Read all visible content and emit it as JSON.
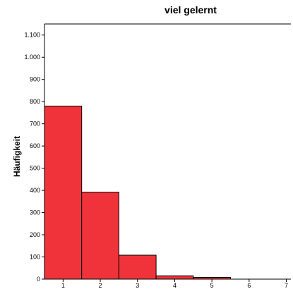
{
  "chart_data": {
    "type": "bar",
    "title": "viel gelernt",
    "ylabel": "Häufigkeit",
    "xlabel": "",
    "categories": [
      "1",
      "2",
      "3",
      "4",
      "5",
      "6",
      "7"
    ],
    "values": [
      780,
      392,
      108,
      15,
      8,
      0,
      0
    ],
    "ylim": [
      0,
      1150
    ],
    "yticks": [
      {
        "value": 0,
        "label": "0"
      },
      {
        "value": 100,
        "label": "100"
      },
      {
        "value": 200,
        "label": "200"
      },
      {
        "value": 300,
        "label": "300"
      },
      {
        "value": 400,
        "label": "400"
      },
      {
        "value": 500,
        "label": "500"
      },
      {
        "value": 600,
        "label": "600"
      },
      {
        "value": 700,
        "label": "700"
      },
      {
        "value": 800,
        "label": "800"
      },
      {
        "value": 900,
        "label": "900"
      },
      {
        "value": 1000,
        "label": "1.000"
      },
      {
        "value": 1100,
        "label": "1.100"
      }
    ],
    "bar_color": "#f0333a",
    "edge_color": "#000000",
    "grid": false
  }
}
